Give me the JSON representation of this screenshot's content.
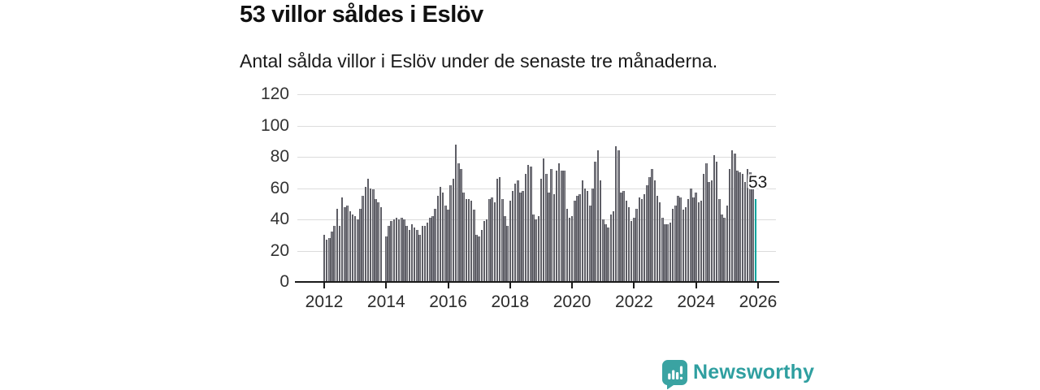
{
  "header": {
    "title": "53 villor såldes i Eslöv",
    "subtitle": "Antal sålda villor i Eslöv under de senaste tre månaderna."
  },
  "branding": {
    "name": "Newsworthy",
    "icon": "speech-bubble-bar-chart-icon"
  },
  "colors": {
    "bar_fill": "#8d8d94",
    "bar_edge": "#53535a",
    "highlight_bar": "#00a59e",
    "gridline": "#dcdcdc",
    "axis": "#1a1a1a",
    "text": "#1a1a1a",
    "tick_label_color": "#333333",
    "brand_teal": "#2f9fa0"
  },
  "chart_data": {
    "type": "bar",
    "title": "53 villor såldes i Eslöv",
    "subtitle": "Antal sålda villor i Eslöv under de senaste tre månaderna.",
    "frequency": "monthly",
    "x_start": "2012-01",
    "x_end": "2025-12",
    "x_tick_labels": [
      "2012",
      "2014",
      "2016",
      "2018",
      "2020",
      "2022",
      "2024",
      "2026"
    ],
    "y_ticks": [
      0,
      20,
      40,
      60,
      80,
      100,
      120
    ],
    "ylim": [
      0,
      120
    ],
    "grid": "horizontal",
    "legend": "none",
    "values": [
      30,
      27,
      28,
      32,
      36,
      47,
      36,
      54,
      48,
      49,
      45,
      43,
      42,
      40,
      47,
      55,
      61,
      66,
      60,
      59,
      53,
      51,
      48,
      null,
      29,
      36,
      39,
      40,
      41,
      40,
      41,
      40,
      36,
      33,
      37,
      35,
      33,
      30,
      36,
      36,
      38,
      41,
      42,
      47,
      55,
      61,
      57,
      49,
      46,
      62,
      66,
      88,
      76,
      72,
      57,
      53,
      53,
      52,
      46,
      30,
      29,
      33,
      39,
      40,
      53,
      54,
      51,
      66,
      67,
      53,
      42,
      36,
      52,
      58,
      63,
      65,
      57,
      58,
      69,
      75,
      74,
      43,
      40,
      42,
      66,
      79,
      69,
      57,
      72,
      56,
      71,
      76,
      71,
      71,
      47,
      41,
      42,
      52,
      55,
      56,
      65,
      60,
      58,
      49,
      60,
      77,
      84,
      65,
      40,
      37,
      35,
      43,
      45,
      87,
      84,
      57,
      58,
      52,
      48,
      39,
      41,
      47,
      54,
      53,
      56,
      62,
      67,
      72,
      65,
      55,
      51,
      41,
      37,
      37,
      38,
      47,
      49,
      55,
      54,
      46,
      48,
      53,
      60,
      54,
      57,
      51,
      52,
      69,
      76,
      64,
      65,
      81,
      77,
      53,
      43,
      41,
      49,
      72,
      84,
      82,
      71,
      70,
      69,
      64,
      72,
      70,
      60,
      53
    ],
    "highlight_last": {
      "value": 53,
      "label": "53"
    }
  }
}
